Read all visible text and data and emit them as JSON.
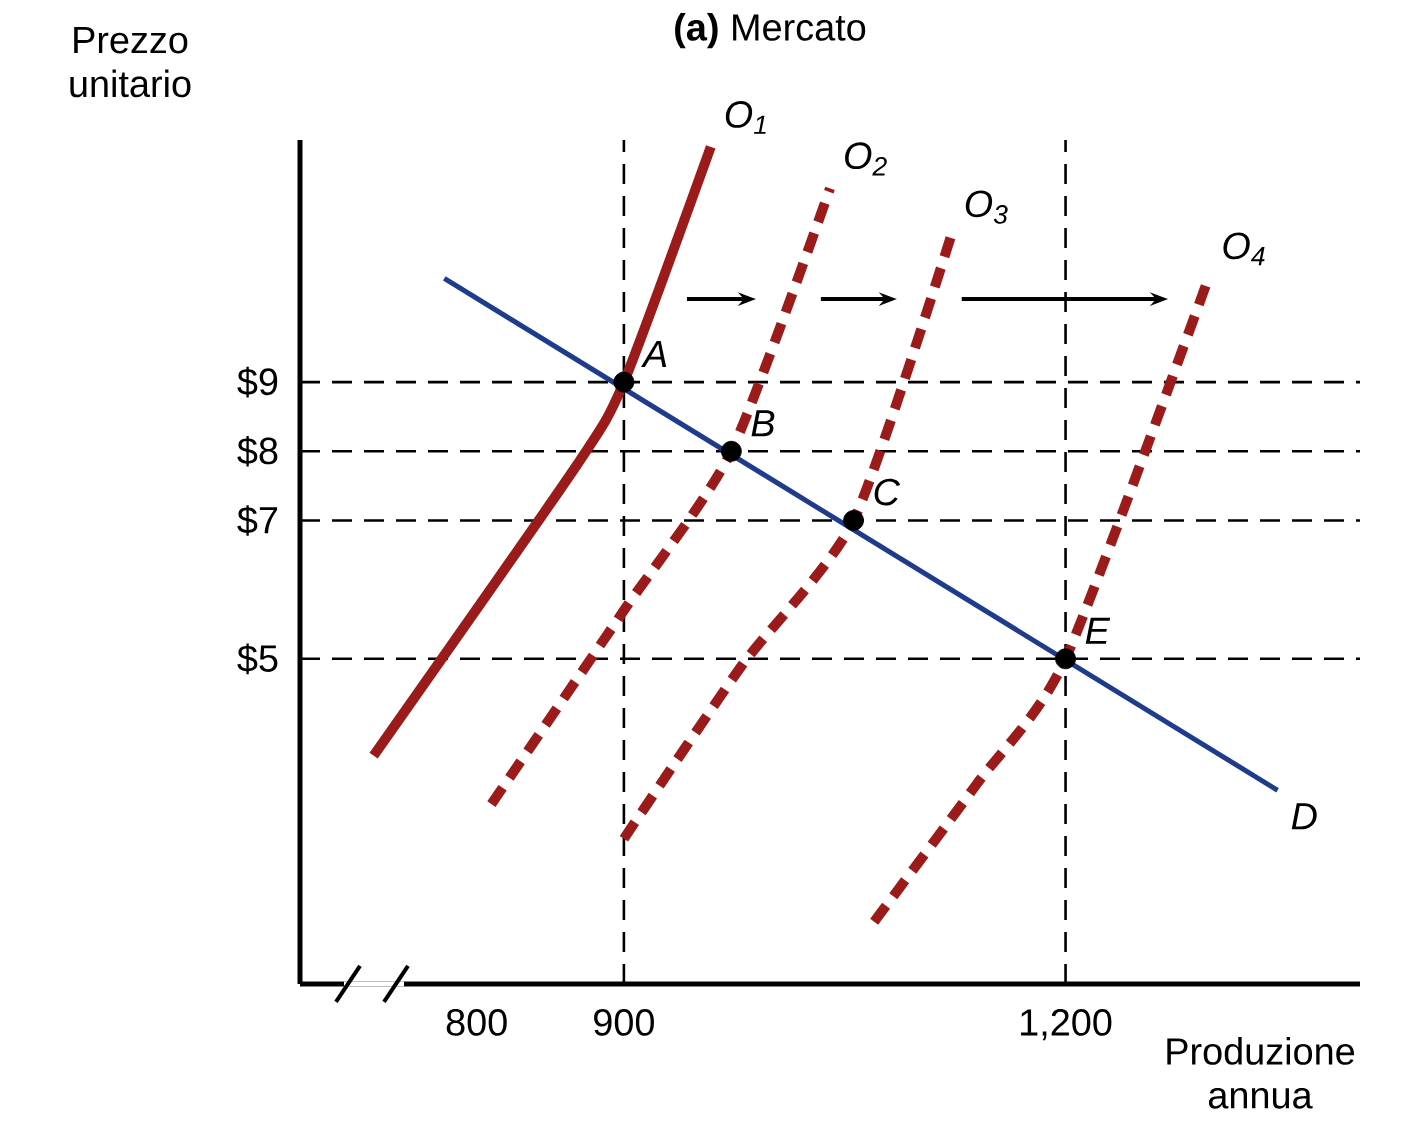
{
  "chart_data": {
    "type": "line",
    "title": "**(a)** Mercato",
    "ylabel": "Prezzo unitario",
    "xlabel": "Produzione annua",
    "xlim": [
      680,
      1400
    ],
    "ylim": [
      0.3,
      12.5
    ],
    "xticks": [
      800,
      900,
      {
        "value": 1200,
        "label": "1,200"
      }
    ],
    "yticks": [
      {
        "value": 5,
        "label": "$5"
      },
      {
        "value": 7,
        "label": "$7"
      },
      {
        "value": 8,
        "label": "$8"
      },
      {
        "value": 9,
        "label": "$9"
      }
    ],
    "grid": false,
    "series": [
      {
        "name": "*O*$_{1}$",
        "color": "#9b1b1b",
        "line_style": "solid",
        "x": [
          730,
          868,
          900,
          959
        ],
        "values": [
          3.6,
          7.8,
          9,
          12.4
        ]
      },
      {
        "name": "*O*$_{2}$",
        "color": "#9b1b1b",
        "line_style": "dashed",
        "x": [
          810,
          900,
          973,
          1040
        ],
        "values": [
          2.9,
          5.7,
          8,
          11.8
        ]
      },
      {
        "name": "*O*$_{3}$",
        "color": "#9b1b1b",
        "line_style": "dashed",
        "x": [
          900,
          980,
          1056,
          1122
        ],
        "values": [
          2.4,
          4.9,
          7,
          11.1
        ]
      },
      {
        "name": "*O*$_{4}$",
        "color": "#9b1b1b",
        "line_style": "dashed",
        "x": [
          1070,
          1140,
          1200,
          1297
        ],
        "values": [
          1.2,
          3.2,
          5,
          10.5
        ]
      },
      {
        "name": "D",
        "color": "#1f3c8c",
        "line_style": "solid",
        "x": [
          778,
          1344
        ],
        "values": [
          10.5,
          3.1
        ]
      },
      {
        "type": "scatter",
        "color": "#000000",
        "x": [
          900,
          973,
          1056,
          1200
        ],
        "values": [
          9,
          8,
          7,
          5
        ]
      }
    ],
    "annotations": [
      {
        "text": "A",
        "x": 900,
        "y": 9
      },
      {
        "text": "B",
        "x": 973,
        "y": 8
      },
      {
        "text": "C",
        "x": 1056,
        "y": 7
      },
      {
        "text": "E",
        "x": 1200,
        "y": 5
      }
    ],
    "ref_lines": [
      {
        "axis": "y",
        "value": 9,
        "color": "#000000",
        "line_style": "dashed"
      },
      {
        "axis": "y",
        "value": 8,
        "color": "#000000",
        "line_style": "dashed"
      },
      {
        "axis": "y",
        "value": 7,
        "color": "#000000",
        "line_style": "dashed"
      },
      {
        "axis": "y",
        "value": 5,
        "color": "#000000",
        "line_style": "dashed"
      },
      {
        "axis": "x",
        "value": 900,
        "color": "#000000",
        "line_style": "dashed"
      },
      {
        "axis": "x",
        "value": 1200,
        "color": "#000000",
        "line_style": "dashed"
      }
    ]
  }
}
